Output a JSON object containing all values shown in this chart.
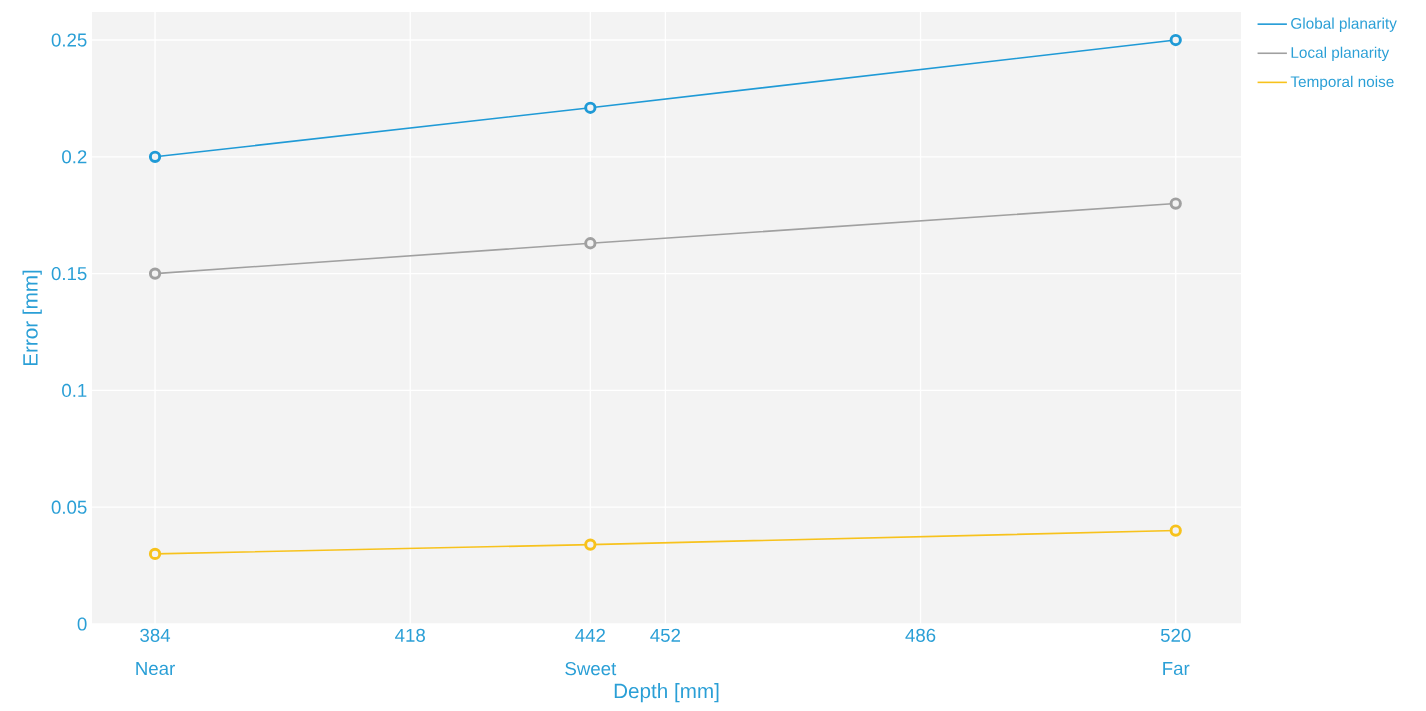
{
  "chart_data": {
    "type": "line",
    "xlabel": "Depth [mm]",
    "ylabel": "Error [mm]",
    "x": [
      384,
      442,
      520
    ],
    "series": [
      {
        "name": "Global planarity",
        "color": "#1f9ad6",
        "values": [
          0.2,
          0.221,
          0.25
        ]
      },
      {
        "name": "Local planarity",
        "color": "#a0a0a0",
        "values": [
          0.15,
          0.163,
          0.18
        ]
      },
      {
        "name": "Temporal noise",
        "color": "#f7c21c",
        "values": [
          0.03,
          0.034,
          0.04
        ]
      }
    ],
    "xlim": [
      375.6,
      528.7
    ],
    "ylim": [
      0,
      0.262
    ],
    "xticks": [
      384,
      418,
      442,
      452,
      486,
      520
    ],
    "annotations": [
      "Near",
      "Sweet",
      "Far"
    ],
    "yticks": [
      0,
      0.05,
      0.1,
      0.15,
      0.2,
      0.25
    ],
    "grid": true,
    "legend": "top right",
    "marker": "circle",
    "line_style": "solid"
  }
}
